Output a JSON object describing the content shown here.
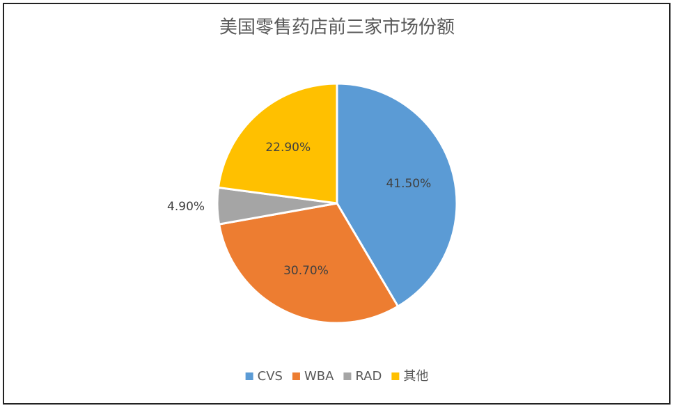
{
  "chart_data": {
    "type": "pie",
    "title": "美国零售药店前三家市场份额",
    "categories": [
      "CVS",
      "WBA",
      "RAD",
      "其他"
    ],
    "values": [
      41.5,
      30.7,
      4.9,
      22.9
    ],
    "value_labels": [
      "41.50%",
      "30.70%",
      "4.90%",
      "22.90%"
    ],
    "colors": [
      "#5b9bd5",
      "#ed7d31",
      "#a5a5a5",
      "#ffc000"
    ],
    "legend": "bottom"
  }
}
